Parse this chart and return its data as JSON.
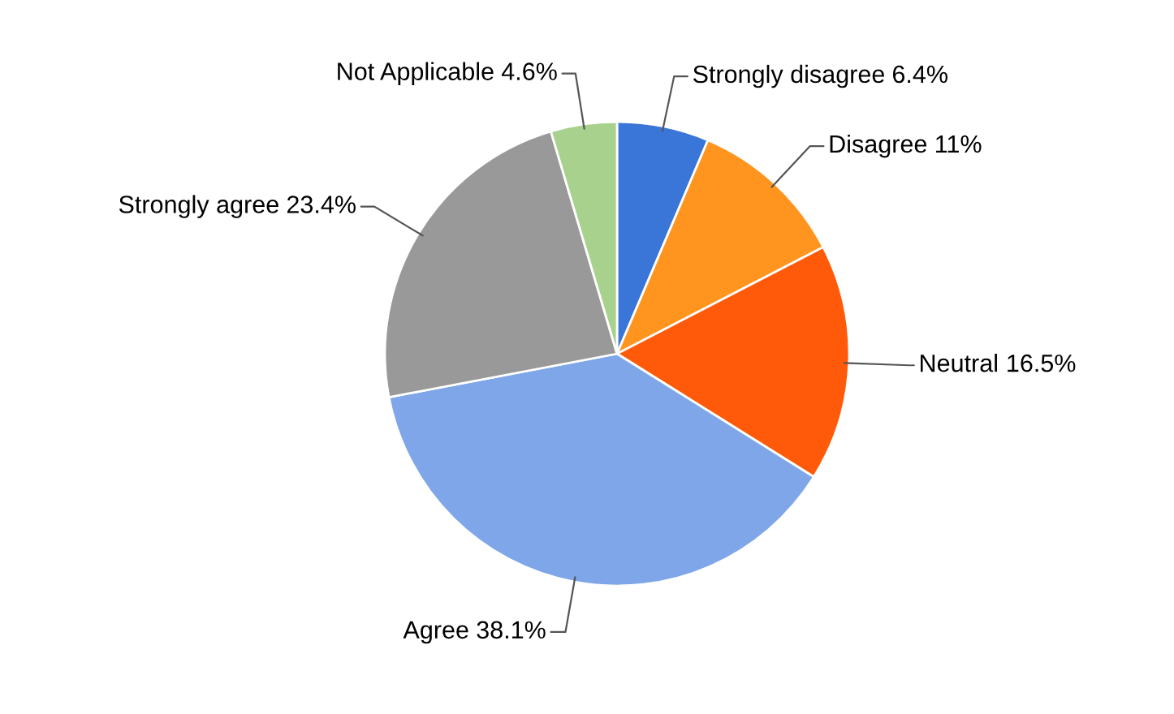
{
  "chart_data": {
    "type": "pie",
    "categories": [
      "Strongly disagree",
      "Disagree",
      "Neutral",
      "Agree",
      "Strongly agree",
      "Not Applicable"
    ],
    "values": [
      6.4,
      11,
      16.5,
      38.1,
      23.4,
      4.6
    ],
    "colors": [
      "#3a75d8",
      "#ff951f",
      "#ff5a0a",
      "#7ea6e8",
      "#999999",
      "#a9d18e"
    ],
    "value_labels": [
      "6.4%",
      "11%",
      "16.5%",
      "38.1%",
      "23.4%",
      "4.6%"
    ],
    "legend": false
  }
}
